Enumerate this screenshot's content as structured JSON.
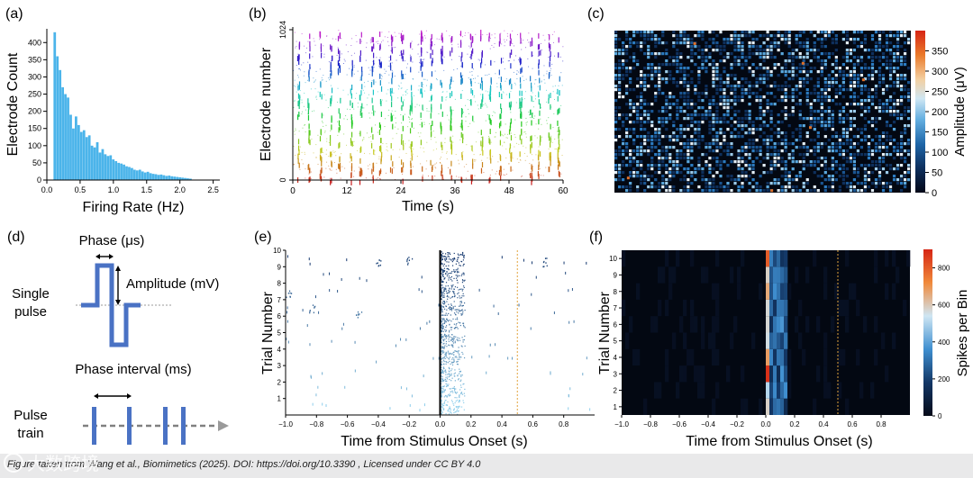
{
  "footer": {
    "credit": "Figure taken from Wang et al., Biomimetics (2025). DOI: https://doi.org/10.3390 , Licensed under CC BY 4.0"
  },
  "watermark": {
    "text": "大数跨境"
  },
  "colors": {
    "hist_bar": "#4bb4ea",
    "threshold_line": "#e2a33c",
    "pulse": "#4a72c4",
    "heat_background": "#030812"
  },
  "panels": {
    "d": {
      "label": "(d)",
      "phase_label": "Phase (μs)",
      "amplitude_label": "Amplitude (mV)",
      "single_pulse_line1": "Single",
      "single_pulse_line2": "pulse",
      "phase_interval_label": "Phase interval (ms)",
      "pulse_train_line1": "Pulse",
      "pulse_train_line2": "train"
    }
  },
  "chart_data": [
    {
      "id": "a",
      "panel_label": "(a)",
      "type": "bar",
      "title": "",
      "xlabel": "Firing Rate (Hz)",
      "ylabel": "Electrode Count",
      "xlim": [
        0,
        2.6
      ],
      "ylim": [
        0,
        440
      ],
      "xticks": [
        "0.0",
        "0.5",
        "1.0",
        "1.5",
        "2.0",
        "2.5"
      ],
      "yticks": [
        "0",
        "50",
        "100",
        "150",
        "200",
        "250",
        "300",
        "350",
        "400"
      ],
      "bin_start": 0.1,
      "bin_width": 0.04,
      "values": [
        430,
        360,
        320,
        270,
        250,
        240,
        190,
        150,
        185,
        160,
        140,
        145,
        125,
        130,
        100,
        95,
        110,
        80,
        90,
        75,
        70,
        72,
        60,
        55,
        50,
        48,
        45,
        40,
        38,
        35,
        30,
        28,
        30,
        25,
        22,
        24,
        20,
        18,
        17,
        15,
        16,
        14,
        12,
        13,
        11,
        10,
        9,
        8,
        7,
        6,
        5,
        4
      ]
    },
    {
      "id": "b",
      "panel_label": "(b)",
      "type": "scatter",
      "xlabel": "Time (s)",
      "ylabel": "Electrode number",
      "xlim": [
        0,
        60
      ],
      "ylim": [
        0,
        1024
      ],
      "xticks": [
        "0",
        "12",
        "24",
        "36",
        "48",
        "60"
      ],
      "yticks": [
        "0",
        "1024"
      ],
      "burst_times": [
        1.2,
        3.5,
        6.1,
        8.4,
        10.2,
        12.9,
        15.0,
        17.6,
        19.4,
        21.8,
        24.2,
        26.1,
        28.5,
        30.7,
        32.9,
        35.0,
        37.4,
        39.6,
        41.8,
        43.7,
        46.0,
        48.2,
        50.5,
        52.8,
        54.6,
        56.9,
        58.9
      ]
    },
    {
      "id": "c",
      "panel_label": "(c)",
      "type": "heatmap",
      "colorbar_label": "Amplitude (μV)",
      "vmin": 0,
      "vmax": 400,
      "colorbar_ticks": [
        "0",
        "50",
        "100",
        "150",
        "200",
        "250",
        "300",
        "350"
      ]
    },
    {
      "id": "e",
      "panel_label": "(e)",
      "type": "scatter",
      "xlabel": "Time from Stimulus Onset (s)",
      "ylabel": "Trial Number",
      "xlim": [
        -1.0,
        1.0
      ],
      "ylim": [
        0,
        10
      ],
      "xticks": [
        "−1.0",
        "−0.8",
        "−0.6",
        "−0.4",
        "−0.2",
        "0.0",
        "0.2",
        "0.4",
        "0.6",
        "0.8"
      ],
      "yticks": [
        "1",
        "2",
        "3",
        "4",
        "5",
        "6",
        "7",
        "8",
        "9",
        "10"
      ],
      "stimulus_onset": 0.0,
      "marker_line": 0.5
    },
    {
      "id": "f",
      "panel_label": "(f)",
      "type": "heatmap",
      "xlabel": "Time from Stimulus Onset (s)",
      "ylabel": "Trial Number",
      "colorbar_label": "Spikes per Bin",
      "xlim": [
        -1.0,
        1.0
      ],
      "ylim": [
        0,
        10
      ],
      "xticks": [
        "−1.0",
        "−0.8",
        "−0.6",
        "−0.4",
        "−0.2",
        "0.0",
        "0.2",
        "0.4",
        "0.6",
        "0.8"
      ],
      "yticks": [
        "1",
        "2",
        "3",
        "4",
        "5",
        "6",
        "7",
        "8",
        "9",
        "10"
      ],
      "colorbar_ticks": [
        "0",
        "200",
        "400",
        "600",
        "800"
      ],
      "vmin": 0,
      "vmax": 900,
      "marker_line": 0.5
    }
  ]
}
